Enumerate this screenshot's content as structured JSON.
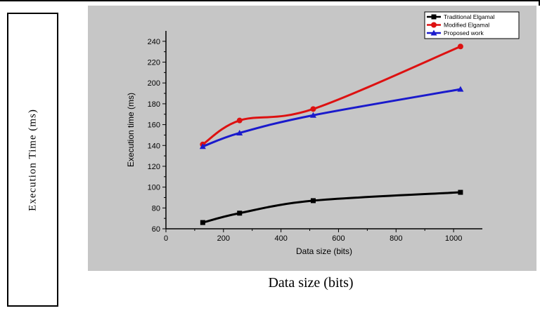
{
  "outer": {
    "ylabel": "Execution Time (ms)",
    "xlabel": "Data size (bits)"
  },
  "chart_data": {
    "type": "line",
    "xlabel": "Data size (bits)",
    "ylabel": "Execution time (ms)",
    "xlim": [
      0,
      1100
    ],
    "ylim": [
      60,
      250
    ],
    "xticks": [
      0,
      200,
      400,
      600,
      800,
      1000
    ],
    "yticks": [
      60,
      80,
      100,
      120,
      140,
      160,
      180,
      200,
      220,
      240
    ],
    "grid": false,
    "legend_position": "top-right",
    "x": [
      128,
      256,
      512,
      1024
    ],
    "series": [
      {
        "name": "Traditional Elgamal",
        "values": [
          66,
          75,
          87,
          95
        ],
        "color": "#000000",
        "marker": "square"
      },
      {
        "name": "Modified Elgamal",
        "values": [
          141,
          164,
          175,
          235
        ],
        "color": "#dd1111",
        "marker": "circle"
      },
      {
        "name": "Proposed work",
        "values": [
          139,
          152,
          169,
          194
        ],
        "color": "#1a1acc",
        "marker": "triangle"
      }
    ]
  }
}
